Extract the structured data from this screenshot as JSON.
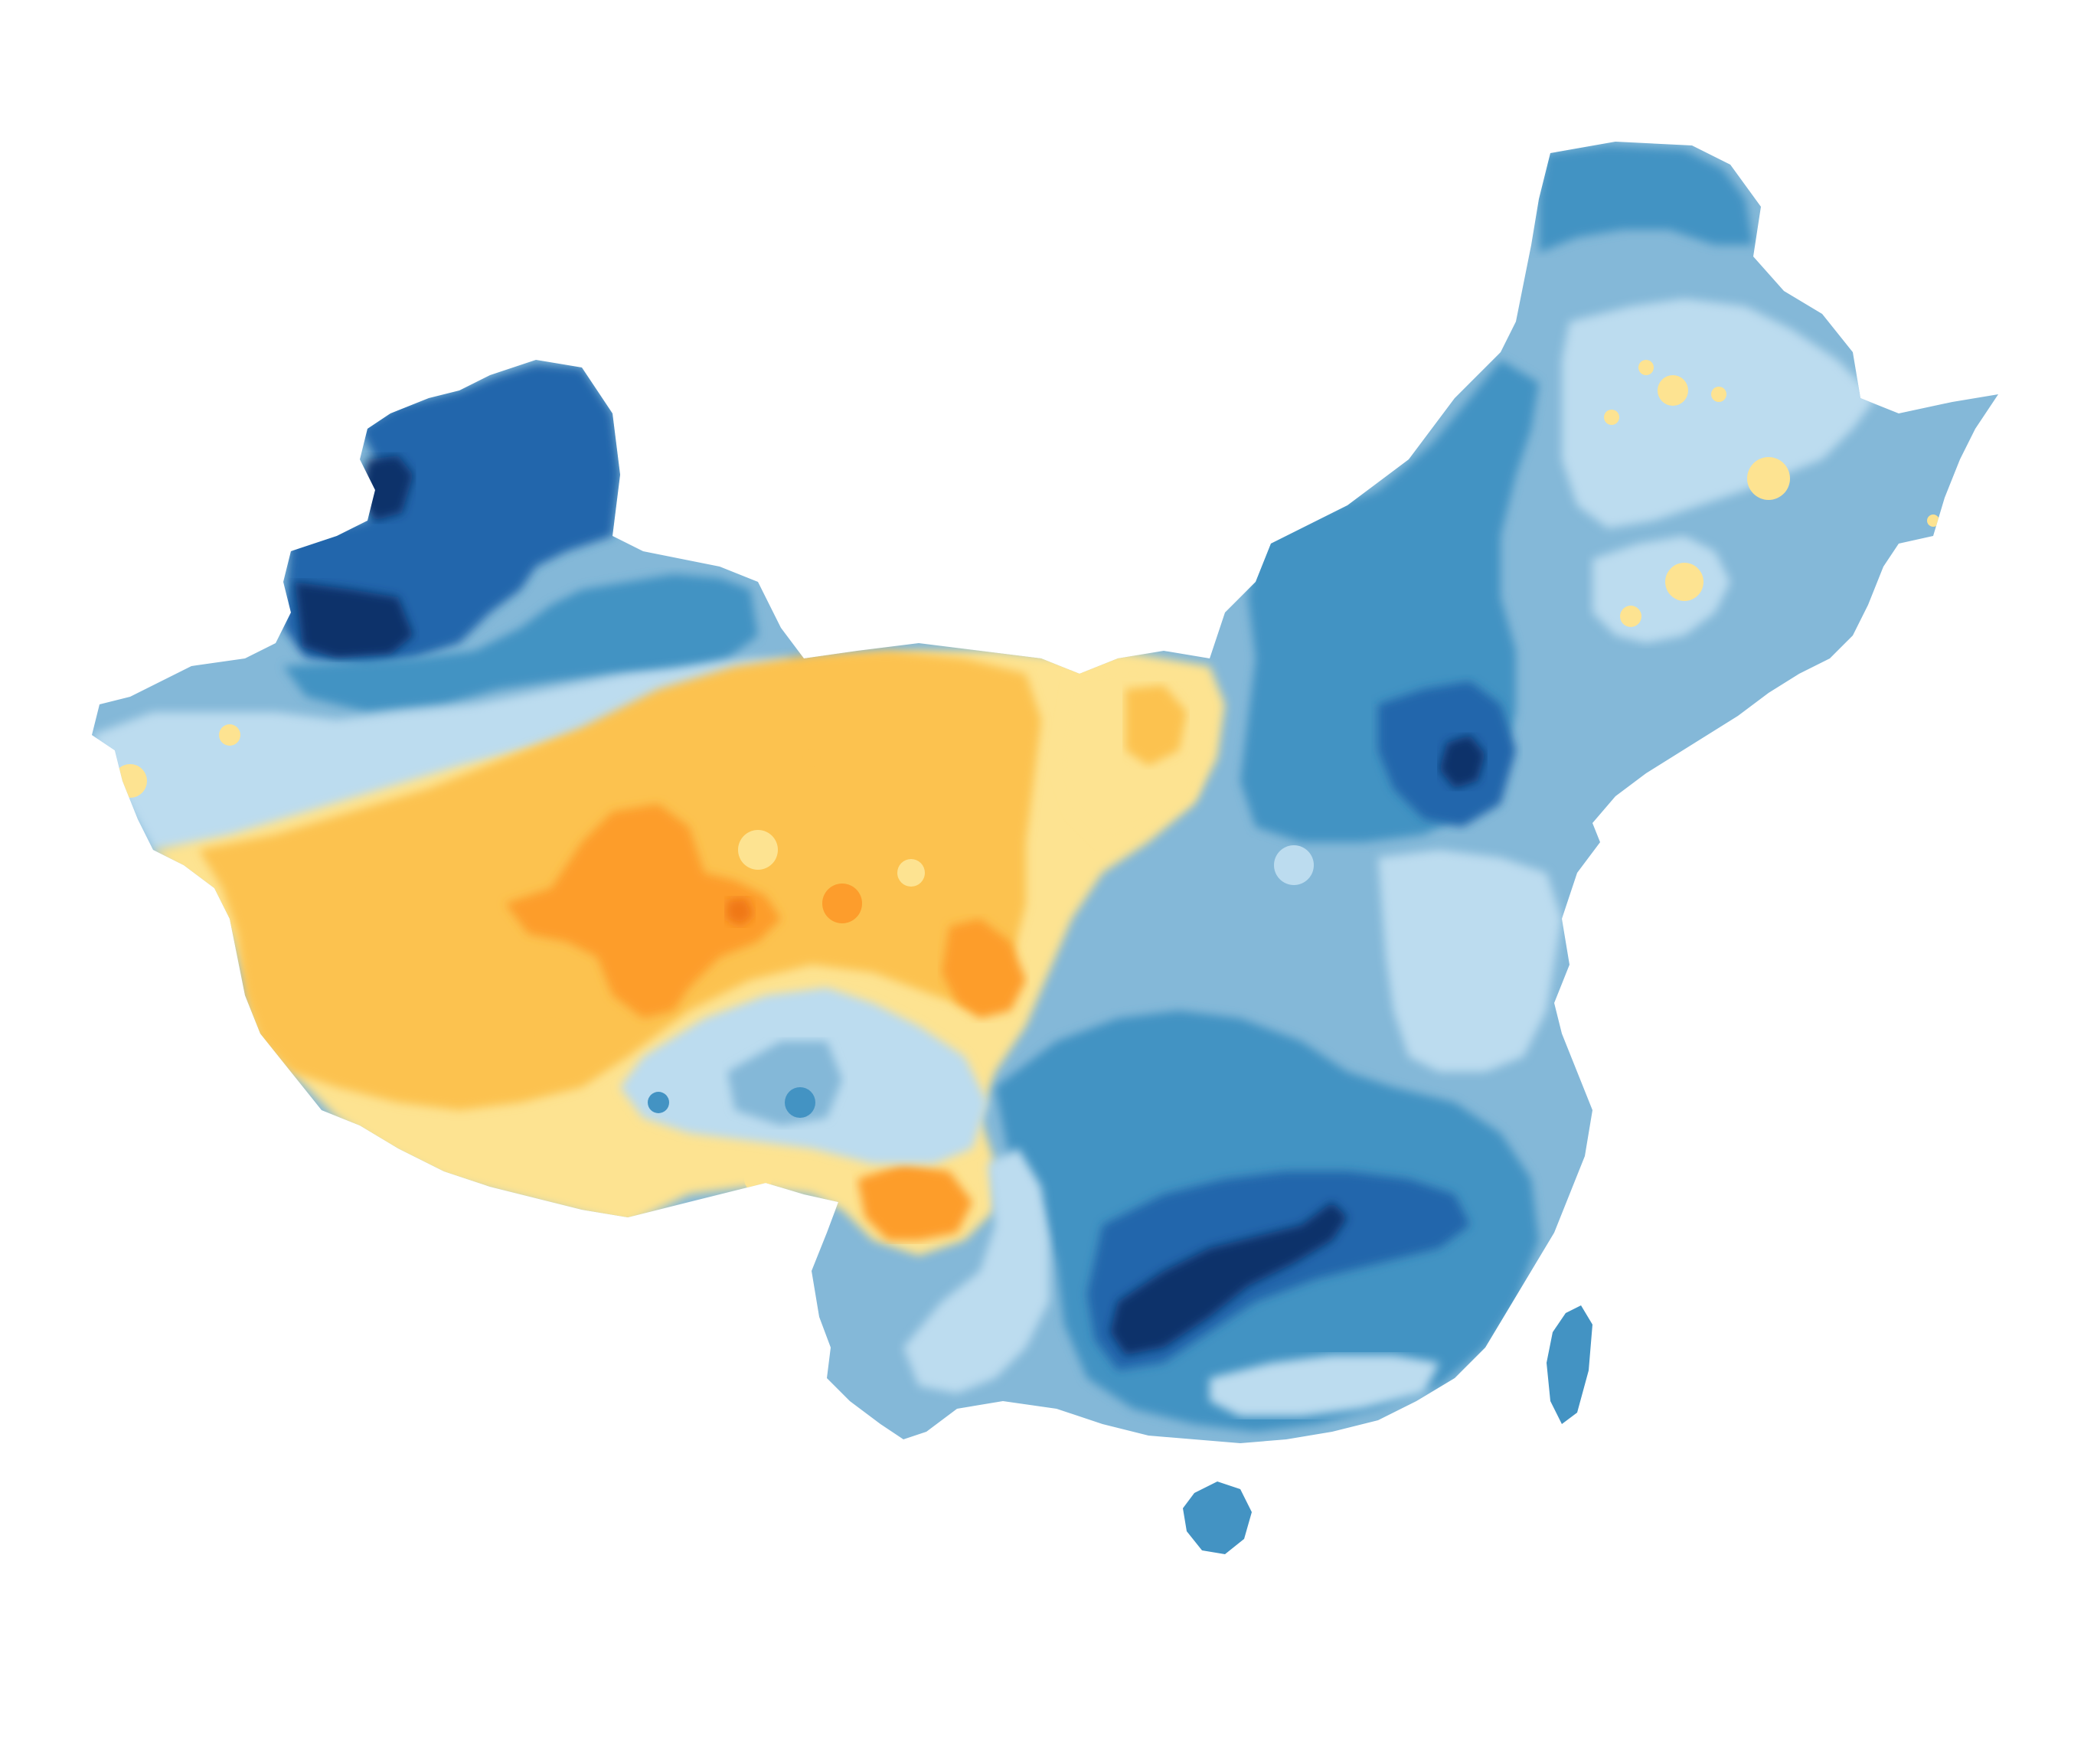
{
  "map": {
    "palette": {
      "darkest_blue": "#08306b",
      "dark_blue": "#2166ac",
      "mid_blue": "#4393c3",
      "light_blue": "#84b8d8",
      "pale_blue": "#bcdcef",
      "pale_yellow": "#fde391",
      "light_orange": "#fcc24f",
      "orange": "#fd9d2c",
      "dark_orange": "#f07818"
    }
  }
}
